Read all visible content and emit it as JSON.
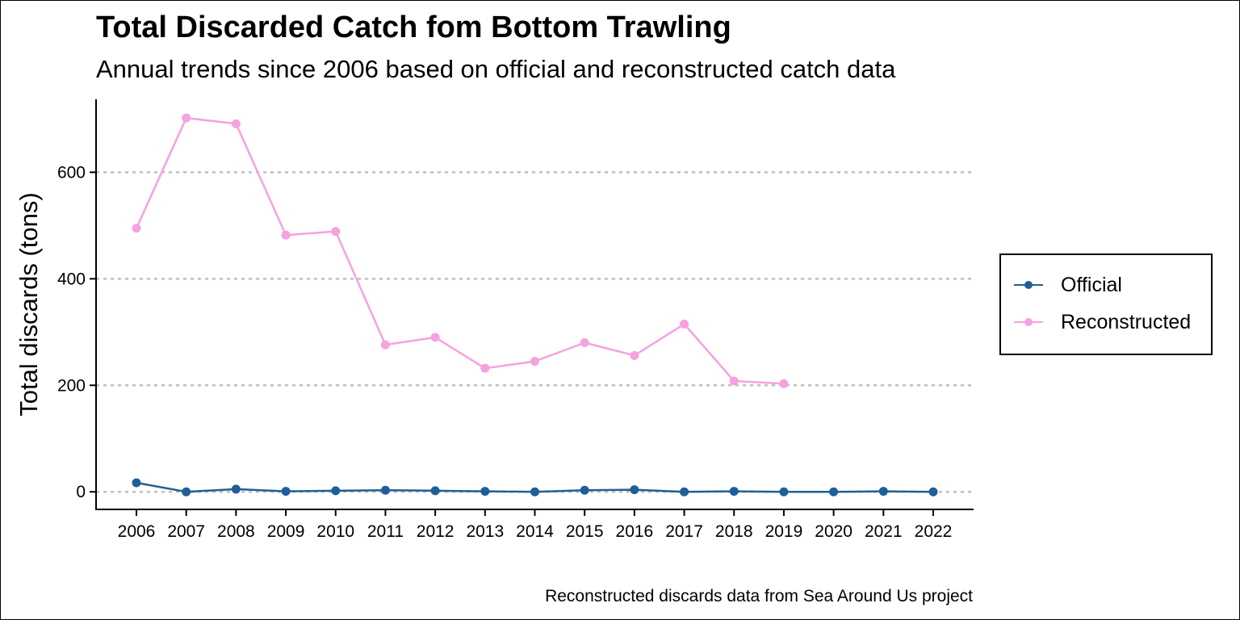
{
  "chart_data": {
    "type": "line",
    "title": "Total Discarded Catch fom Bottom Trawling",
    "subtitle": "Annual trends since 2006 based on official and reconstructed catch data",
    "xlabel": "",
    "ylabel": "Total discards (tons)",
    "caption": "Reconstructed discards data from Sea Around Us project",
    "x": [
      2006,
      2007,
      2008,
      2009,
      2010,
      2011,
      2012,
      2013,
      2014,
      2015,
      2016,
      2017,
      2018,
      2019,
      2020,
      2021,
      2022
    ],
    "y_ticks": [
      0,
      200,
      400,
      600
    ],
    "ylim": [
      -33,
      737
    ],
    "grid": "horizontal dotted",
    "legend_position": "right",
    "series": [
      {
        "name": "Official",
        "color": "#1f5f99",
        "values": [
          17,
          0,
          5,
          1,
          2,
          3,
          2,
          1,
          0,
          3,
          4,
          0,
          1,
          0,
          0,
          1,
          0
        ]
      },
      {
        "name": "Reconstructed",
        "color": "#f7a1e0",
        "values": [
          495,
          702,
          691,
          482,
          489,
          276,
          290,
          232,
          245,
          280,
          256,
          315,
          208,
          203,
          null,
          null,
          null
        ]
      }
    ]
  }
}
